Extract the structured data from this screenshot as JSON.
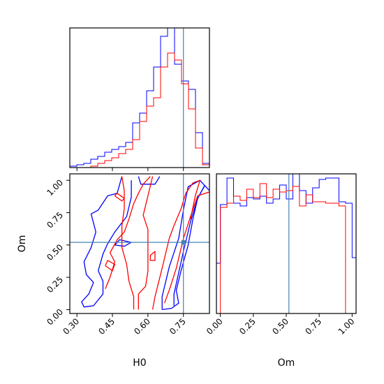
{
  "chart_data": {
    "type": "corner",
    "parameters": [
      "H0",
      "Om"
    ],
    "truth": {
      "H0": 0.75,
      "Om": 0.52
    },
    "colors": {
      "blue": "#0000ff",
      "red": "#ff0000",
      "truth": "#4682b4"
    },
    "hist_H0": {
      "xlim": [
        0.27,
        0.86
      ],
      "bins": [
        0.27,
        0.2995,
        0.329,
        0.3585,
        0.388,
        0.4175,
        0.447,
        0.4765,
        0.506,
        0.5355,
        0.565,
        0.5945,
        0.624,
        0.6535,
        0.683,
        0.7125,
        0.742,
        0.7715,
        0.801,
        0.8305,
        0.86
      ],
      "series": [
        {
          "color": "blue",
          "values": [
            0.01,
            0.02,
            0.03,
            0.06,
            0.08,
            0.11,
            0.13,
            0.15,
            0.18,
            0.32,
            0.39,
            0.55,
            0.72,
            0.94,
            1.0,
            0.74,
            0.62,
            0.56,
            0.25,
            0.03
          ]
        },
        {
          "color": "red",
          "values": [
            0,
            0,
            0,
            0.01,
            0.03,
            0.05,
            0.07,
            0.1,
            0.13,
            0.2,
            0.33,
            0.44,
            0.5,
            0.72,
            0.82,
            0.77,
            0.6,
            0.42,
            0.14,
            0.02
          ]
        }
      ]
    },
    "hist_Om": {
      "xlim": [
        -0.03,
        1.03
      ],
      "xticks": [
        "0.00",
        "0.25",
        "0.50",
        "0.75",
        "1.00"
      ],
      "xtick_values": [
        0,
        0.25,
        0.5,
        0.75,
        1.0
      ],
      "xlabel": "Om",
      "bins": [
        -0.03,
        0.0,
        0.05,
        0.1,
        0.15,
        0.2,
        0.25,
        0.3,
        0.35,
        0.4,
        0.45,
        0.5,
        0.55,
        0.6,
        0.65,
        0.7,
        0.75,
        0.8,
        0.85,
        0.9,
        0.95,
        1.0,
        1.03
      ],
      "series": [
        {
          "color": "blue",
          "values": [
            0.36,
            0.78,
            0.97,
            0.79,
            0.77,
            0.83,
            0.82,
            0.84,
            0.79,
            0.82,
            0.92,
            0.82,
            1.0,
            0.88,
            0.79,
            0.9,
            0.96,
            0.97,
            0.97,
            0.8,
            0.79,
            0.4
          ]
        },
        {
          "color": "red",
          "values": [
            0.0,
            0.76,
            0.79,
            0.84,
            0.81,
            0.89,
            0.83,
            0.93,
            0.83,
            0.89,
            0.87,
            0.88,
            0.91,
            0.77,
            0.85,
            0.8,
            0.8,
            0.79,
            0.79,
            0.77,
            0.0,
            0.0
          ]
        }
      ]
    },
    "contour": {
      "xlim": [
        0.27,
        0.86
      ],
      "ylim": [
        -0.03,
        1.05
      ],
      "xticks": [
        "0.30",
        "0.45",
        "0.60",
        "0.75"
      ],
      "xtick_values": [
        0.3,
        0.45,
        0.6,
        0.75
      ],
      "yticks": [
        "0.00",
        "0.25",
        "0.50",
        "0.75",
        "1.00"
      ],
      "ytick_values": [
        0,
        0.25,
        0.5,
        0.75,
        1.0
      ],
      "xlabel": "H0",
      "ylabel": "Om",
      "series": [
        {
          "color": "blue",
          "paths": [
            [
              [
                0.49,
                1.03
              ],
              [
                0.47,
                0.9
              ],
              [
                0.43,
                0.88
              ],
              [
                0.39,
                0.77
              ],
              [
                0.36,
                0.74
              ],
              [
                0.38,
                0.6
              ],
              [
                0.36,
                0.48
              ],
              [
                0.33,
                0.37
              ],
              [
                0.34,
                0.27
              ],
              [
                0.37,
                0.21
              ],
              [
                0.35,
                0.12
              ],
              [
                0.32,
                0.06
              ],
              [
                0.33,
                0.02
              ],
              [
                0.37,
                0.03
              ],
              [
                0.41,
                0.12
              ],
              [
                0.41,
                0.22
              ],
              [
                0.39,
                0.3
              ],
              [
                0.41,
                0.43
              ],
              [
                0.43,
                0.51
              ],
              [
                0.46,
                0.6
              ],
              [
                0.51,
                0.72
              ],
              [
                0.53,
                0.87
              ],
              [
                0.53,
                1.0
              ]
            ],
            [
              [
                0.56,
                1.03
              ],
              [
                0.57,
                0.97
              ],
              [
                0.63,
                0.97
              ],
              [
                0.65,
                1.03
              ]
            ],
            [
              [
                0.53,
                0.52
              ],
              [
                0.48,
                0.54
              ],
              [
                0.46,
                0.5
              ],
              [
                0.5,
                0.49
              ],
              [
                0.53,
                0.52
              ]
            ],
            [
              [
                0.66,
                0.0
              ],
              [
                0.66,
                0.1
              ],
              [
                0.69,
                0.33
              ],
              [
                0.73,
                0.55
              ],
              [
                0.75,
                0.77
              ],
              [
                0.77,
                0.95
              ],
              [
                0.82,
                1.0
              ],
              [
                0.84,
                0.96
              ],
              [
                0.81,
                0.86
              ],
              [
                0.79,
                0.7
              ],
              [
                0.77,
                0.5
              ],
              [
                0.74,
                0.3
              ],
              [
                0.72,
                0.15
              ],
              [
                0.73,
                0.05
              ],
              [
                0.7,
                0.01
              ],
              [
                0.66,
                0.0
              ]
            ],
            [
              [
                0.71,
                0.03
              ],
              [
                0.71,
                0.12
              ],
              [
                0.75,
                0.45
              ],
              [
                0.78,
                0.68
              ],
              [
                0.81,
                0.86
              ],
              [
                0.84,
                0.96
              ],
              [
                0.86,
                0.92
              ]
            ]
          ]
        },
        {
          "color": "red",
          "paths": [
            [
              [
                0.42,
                0.16
              ],
              [
                0.44,
                0.25
              ],
              [
                0.46,
                0.37
              ],
              [
                0.44,
                0.44
              ],
              [
                0.47,
                0.54
              ],
              [
                0.5,
                0.6
              ],
              [
                0.52,
                0.7
              ],
              [
                0.54,
                0.82
              ],
              [
                0.56,
                0.9
              ],
              [
                0.58,
                0.97
              ],
              [
                0.61,
                1.03
              ]
            ],
            [
              [
                0.49,
                1.03
              ],
              [
                0.5,
                0.92
              ],
              [
                0.5,
                0.78
              ],
              [
                0.49,
                0.65
              ],
              [
                0.49,
                0.48
              ],
              [
                0.51,
                0.35
              ],
              [
                0.52,
                0.22
              ],
              [
                0.54,
                0.1
              ],
              [
                0.54,
                0.0
              ]
            ],
            [
              [
                0.56,
                0.0
              ],
              [
                0.56,
                0.12
              ],
              [
                0.59,
                0.18
              ],
              [
                0.6,
                0.3
              ],
              [
                0.6,
                0.45
              ],
              [
                0.6,
                0.62
              ],
              [
                0.58,
                0.73
              ],
              [
                0.6,
                0.88
              ],
              [
                0.62,
                1.03
              ]
            ],
            [
              [
                0.46,
                0.88
              ],
              [
                0.49,
                0.84
              ],
              [
                0.5,
                0.86
              ],
              [
                0.47,
                0.9
              ],
              [
                0.46,
                0.88
              ]
            ],
            [
              [
                0.42,
                0.34
              ],
              [
                0.45,
                0.3
              ],
              [
                0.46,
                0.35
              ],
              [
                0.43,
                0.38
              ],
              [
                0.42,
                0.34
              ]
            ],
            [
              [
                0.67,
                0.05
              ],
              [
                0.69,
                0.15
              ],
              [
                0.72,
                0.32
              ],
              [
                0.75,
                0.55
              ],
              [
                0.78,
                0.72
              ],
              [
                0.81,
                0.88
              ],
              [
                0.86,
                0.91
              ]
            ],
            [
              [
                0.62,
                0.0
              ],
              [
                0.63,
                0.1
              ],
              [
                0.66,
                0.32
              ],
              [
                0.69,
                0.55
              ],
              [
                0.71,
                0.65
              ],
              [
                0.74,
                0.78
              ],
              [
                0.76,
                0.9
              ],
              [
                0.79,
                0.98
              ],
              [
                0.82,
                1.0
              ],
              [
                0.8,
                0.88
              ],
              [
                0.78,
                0.7
              ]
            ],
            [
              [
                0.61,
                0.38
              ],
              [
                0.61,
                0.42
              ],
              [
                0.63,
                0.45
              ],
              [
                0.63,
                0.38
              ],
              [
                0.61,
                0.38
              ]
            ]
          ]
        }
      ]
    }
  }
}
